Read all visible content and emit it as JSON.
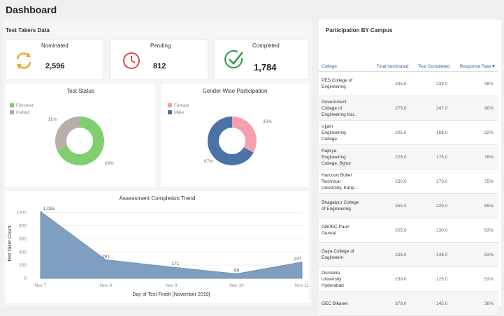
{
  "page": {
    "title": "Dashboard"
  },
  "left_panel": {
    "label": "Test Takers Data"
  },
  "kpis": [
    {
      "label": "Nominated",
      "value": "2,596",
      "icon": "refresh-icon",
      "color": "#f0a830"
    },
    {
      "label": "Pending",
      "value": "812",
      "icon": "clock-icon",
      "color": "#e04848"
    },
    {
      "label": "Completed",
      "value": "1,784",
      "icon": "check-circle-icon",
      "color": "#2e9a4a"
    }
  ],
  "test_status": {
    "title": "Test Status",
    "legend": [
      {
        "name": "Finished",
        "color": "#7fcf6f"
      },
      {
        "name": "Invited",
        "color": "#b8aeab"
      }
    ],
    "slices": [
      {
        "name": "Finished",
        "value": 69,
        "label": "69%"
      },
      {
        "name": "Invited",
        "value": 31,
        "label": "31%"
      }
    ]
  },
  "gender": {
    "title": "Gender Wise Participation",
    "legend": [
      {
        "name": "Female",
        "color": "#f4a0ae"
      },
      {
        "name": "Male",
        "color": "#4a72a8"
      }
    ],
    "slices": [
      {
        "name": "Female",
        "value": 33,
        "label": "33%"
      },
      {
        "name": "Male",
        "color": "#4a72a8",
        "value": 67,
        "label": "67%"
      }
    ]
  },
  "chart_data": {
    "type": "area",
    "title": "Assessment Completion Trend",
    "xlabel": "Day of Test Finish [November 2019]",
    "ylabel": "Test Taker Count",
    "categories": [
      "Nov 7",
      "Nov 8",
      "Nov 9",
      "Nov 10",
      "Nov 11"
    ],
    "values": [
      1016,
      281,
      171,
      69,
      247
    ],
    "value_labels": [
      "1,016",
      "281",
      "171",
      "69",
      "247"
    ],
    "yticks": [
      "0",
      "200",
      "400",
      "600",
      "800",
      "1000"
    ],
    "ylim": [
      0,
      1050
    ],
    "color": "#7f9fc0"
  },
  "campus": {
    "title": "Participation BY Campus",
    "columns": [
      "College",
      "Total nominated",
      "Test Completed",
      "Response Rate"
    ],
    "rows": [
      {
        "college": [
          "PES College of",
          "Engineering"
        ],
        "nominated": "245.0",
        "completed": "239.0",
        "rate": "98%"
      },
      {
        "college": [
          "Government",
          "College of",
          "Engineering Kar.."
        ],
        "nominated": "275.0",
        "completed": "247.0",
        "rate": "90%"
      },
      {
        "college": [
          "Ujjain",
          "Engineering",
          "College"
        ],
        "nominated": "205.0",
        "completed": "168.0",
        "rate": "82%"
      },
      {
        "college": [
          "Rajkiya",
          "Engineering",
          "College, Bijnor"
        ],
        "nominated": "225.0",
        "completed": "176.0",
        "rate": "78%"
      },
      {
        "college": [
          "Harcourt Butler",
          "Technical",
          "University, Kanp.."
        ],
        "nominated": "230.0",
        "completed": "173.0",
        "rate": "75%"
      },
      {
        "college": [
          "Bhagalpur College",
          "of Engineering"
        ],
        "nominated": "355.0",
        "completed": "229.0",
        "rate": "65%"
      },
      {
        "college": [
          "GBPEC Pauri",
          "Garwal"
        ],
        "nominated": "205.0",
        "completed": "130.0",
        "rate": "63%"
      },
      {
        "college": [
          "Gaya College of",
          "Engineerin"
        ],
        "nominated": "236.0",
        "completed": "148.0",
        "rate": "63%"
      },
      {
        "college": [
          "Osmania",
          "University",
          "Hyderabad"
        ],
        "nominated": "239.0",
        "completed": "125.0",
        "rate": "52%"
      },
      {
        "college": [
          "GEC Bikaner"
        ],
        "nominated": "378.0",
        "completed": "145.0",
        "rate": "38%"
      }
    ]
  }
}
